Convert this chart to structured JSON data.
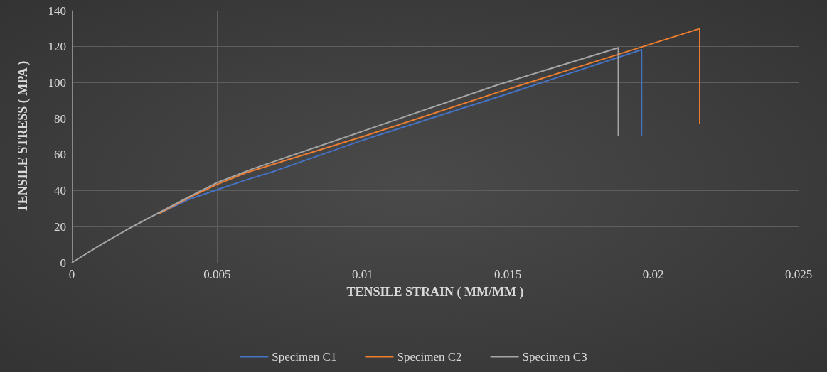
{
  "chart_data": {
    "type": "line",
    "xlabel": "TENSILE STRAIN ( MM/MM )",
    "ylabel": "TENSILE STRESS ( MPA )",
    "xlim": [
      0,
      0.025
    ],
    "xticks": [
      0,
      0.005,
      0.01,
      0.015,
      0.02,
      0.025
    ],
    "ylim": [
      0,
      140
    ],
    "yticks": [
      0,
      20,
      40,
      60,
      80,
      100,
      120,
      140
    ],
    "grid": true,
    "legend": "bottom",
    "marker": "none",
    "line_style": "solid",
    "series": [
      {
        "name": "Specimen C1",
        "color": "#4472c4",
        "x": [
          0.003,
          0.004,
          0.005,
          0.006,
          0.007,
          0.01,
          0.01465,
          0.0196,
          0.0196
        ],
        "values": [
          27.3,
          35,
          40.5,
          46,
          51,
          68,
          92,
          118.3,
          70.7
        ]
      },
      {
        "name": "Specimen C2",
        "color": "#ed7d31",
        "x": [
          0.003,
          0.004,
          0.005,
          0.006,
          0.007,
          0.01,
          0.01465,
          0.0216,
          0.0216
        ],
        "values": [
          27.3,
          35.8,
          43.5,
          50,
          55,
          70,
          94.6,
          130,
          77.3
        ]
      },
      {
        "name": "Specimen C3",
        "color": "#a5a5a5",
        "x": [
          0,
          0.001,
          0.002,
          0.003,
          0.004,
          0.005,
          0.0062,
          0.01,
          0.01465,
          0.0188,
          0.0188
        ],
        "values": [
          0,
          10,
          19.3,
          27.8,
          36.3,
          44.5,
          52,
          73,
          98.8,
          119.4,
          70.3
        ]
      }
    ]
  }
}
